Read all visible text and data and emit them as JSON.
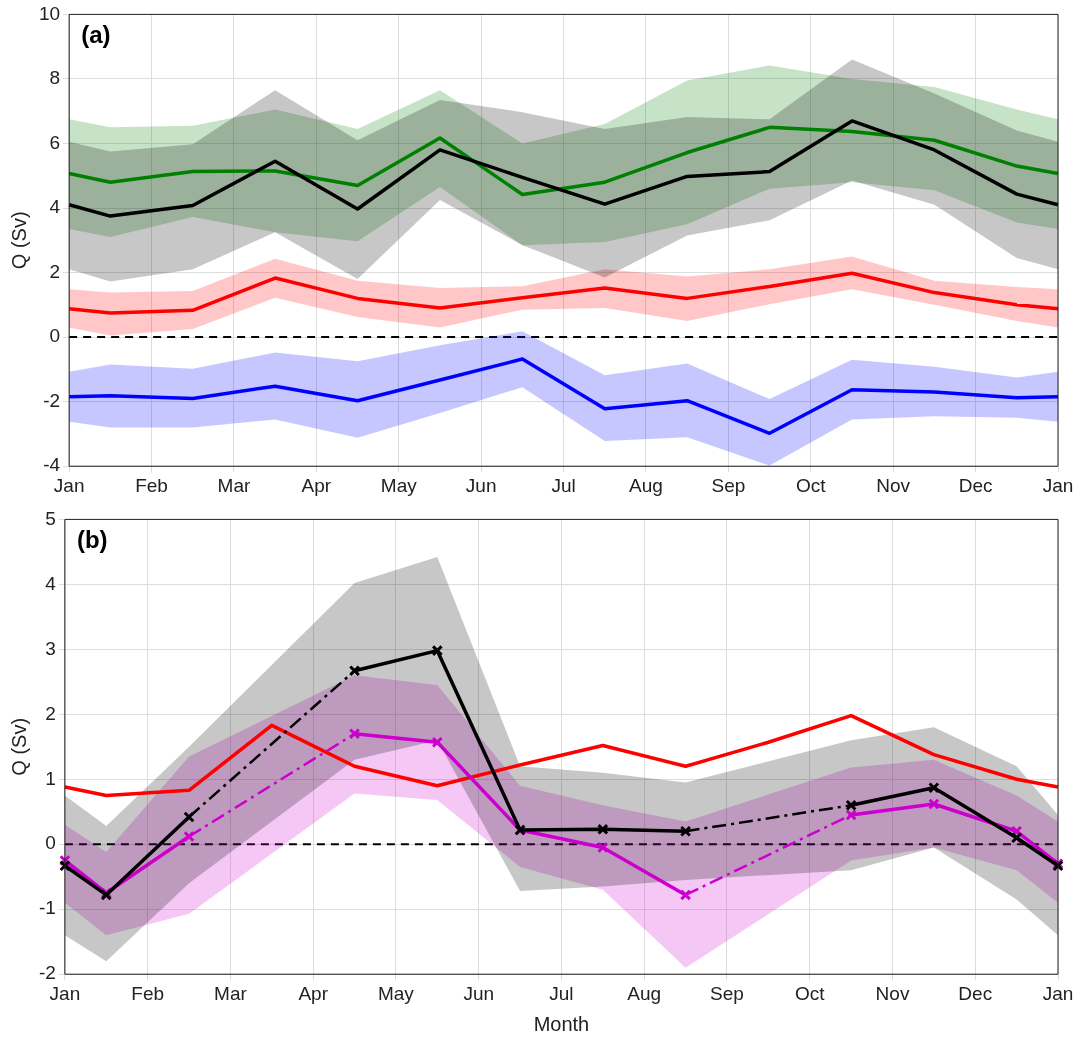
{
  "chart_data": [
    {
      "type": "line",
      "ylabel": "Q (Sv)",
      "annotations": [
        "(a)"
      ],
      "categories": [
        "Jan",
        null,
        "Feb",
        null,
        "Mar",
        null,
        "Apr",
        null,
        "May",
        null,
        "Jun",
        null,
        "Jul",
        null,
        "Aug",
        null,
        "Sep",
        null,
        "Oct",
        null,
        "Nov",
        null,
        "Dec",
        null,
        "Jan"
      ],
      "ylim": [
        -4,
        10
      ],
      "yticks": [
        -4,
        -2,
        0,
        2,
        4,
        6,
        8,
        10
      ],
      "grid": true,
      "legend": false,
      "line_style": "solid",
      "marker": "none",
      "ref_lines": [
        {
          "axis": "y",
          "value": 0,
          "color": "#000000",
          "line_style": "dashed"
        }
      ],
      "series": [
        {
          "color": "#000000",
          "values": [
            4.1,
            3.75,
            null,
            4.08,
            null,
            5.45,
            null,
            3.97,
            null,
            5.8,
            null,
            4.95,
            null,
            4.12,
            null,
            4.98,
            null,
            5.13,
            null,
            6.7,
            null,
            5.8,
            null,
            4.43,
            4.1
          ],
          "upper": [
            6.05,
            5.75,
            null,
            5.98,
            null,
            7.65,
            null,
            6.1,
            null,
            7.35,
            null,
            6.97,
            null,
            6.45,
            null,
            6.82,
            null,
            6.75,
            null,
            8.6,
            null,
            7.55,
            null,
            6.4,
            6.05
          ],
          "lower": [
            2.1,
            1.72,
            null,
            2.1,
            null,
            3.25,
            null,
            1.8,
            null,
            4.25,
            null,
            2.85,
            null,
            1.85,
            null,
            3.15,
            null,
            3.62,
            null,
            4.85,
            null,
            4.1,
            null,
            2.45,
            2.1
          ]
        },
        {
          "color": "#008000",
          "values": [
            5.07,
            4.8,
            null,
            5.13,
            null,
            5.15,
            null,
            4.7,
            null,
            6.17,
            null,
            4.42,
            null,
            4.8,
            null,
            5.72,
            null,
            6.5,
            null,
            6.37,
            null,
            6.1,
            null,
            5.3,
            5.07
          ],
          "upper": [
            6.75,
            6.5,
            null,
            6.55,
            null,
            7.05,
            null,
            6.45,
            null,
            7.65,
            null,
            6.0,
            null,
            6.6,
            null,
            7.95,
            null,
            8.42,
            null,
            8.0,
            null,
            7.75,
            null,
            7.05,
            6.75
          ],
          "lower": [
            3.35,
            3.1,
            null,
            3.72,
            null,
            3.25,
            null,
            2.97,
            null,
            4.65,
            null,
            2.85,
            null,
            2.95,
            null,
            3.5,
            null,
            4.6,
            null,
            4.8,
            null,
            4.55,
            null,
            3.55,
            3.35
          ]
        },
        {
          "color": "#ff0000",
          "values": [
            0.88,
            0.75,
            null,
            0.83,
            null,
            1.83,
            null,
            1.2,
            null,
            0.9,
            null,
            1.22,
            null,
            1.52,
            null,
            1.2,
            null,
            1.57,
            null,
            1.98,
            null,
            1.38,
            null,
            1.0,
            0.88
          ],
          "upper": [
            1.48,
            1.38,
            null,
            1.43,
            null,
            2.43,
            null,
            1.75,
            null,
            1.52,
            null,
            1.58,
            null,
            2.1,
            null,
            1.88,
            null,
            2.1,
            null,
            2.5,
            null,
            1.75,
            null,
            1.55,
            1.48
          ],
          "lower": [
            0.3,
            0.05,
            null,
            0.25,
            null,
            1.22,
            null,
            0.62,
            null,
            0.3,
            null,
            0.85,
            null,
            0.9,
            null,
            0.5,
            null,
            1.02,
            null,
            1.48,
            null,
            1.0,
            null,
            0.5,
            0.3
          ]
        },
        {
          "color": "#0000ff",
          "values": [
            -1.85,
            -1.82,
            null,
            -1.9,
            null,
            -1.52,
            null,
            -1.97,
            null,
            -1.33,
            null,
            -0.68,
            null,
            -2.22,
            null,
            -1.97,
            null,
            -2.98,
            null,
            -1.63,
            null,
            -1.7,
            null,
            -1.88,
            -1.85
          ],
          "upper": [
            -1.07,
            -0.85,
            null,
            -0.98,
            null,
            -0.48,
            null,
            -0.75,
            null,
            -0.25,
            null,
            0.18,
            null,
            -1.18,
            null,
            -0.82,
            null,
            -1.92,
            null,
            -0.7,
            null,
            -0.92,
            null,
            -1.25,
            -1.07
          ],
          "lower": [
            -2.62,
            -2.8,
            null,
            -2.8,
            null,
            -2.55,
            null,
            -3.12,
            null,
            -2.35,
            null,
            -1.55,
            null,
            -3.22,
            null,
            -3.1,
            null,
            -3.98,
            null,
            -2.55,
            null,
            -2.45,
            null,
            -2.5,
            -2.62
          ]
        }
      ]
    },
    {
      "type": "line",
      "xlabel": "Month",
      "ylabel": "Q (Sv)",
      "annotations": [
        "(b)"
      ],
      "categories": [
        "Jan",
        null,
        "Feb",
        null,
        "Mar",
        null,
        "Apr",
        null,
        "May",
        null,
        "Jun",
        null,
        "Jul",
        null,
        "Aug",
        null,
        "Sep",
        null,
        "Oct",
        null,
        "Nov",
        null,
        "Dec",
        null,
        "Jan"
      ],
      "ylim": [
        -2,
        5
      ],
      "yticks": [
        -2,
        -1,
        0,
        1,
        2,
        3,
        4,
        5
      ],
      "grid": true,
      "legend": false,
      "line_style": "solid",
      "ref_lines": [
        {
          "axis": "y",
          "value": 0,
          "color": "#000000",
          "line_style": "dashed"
        }
      ],
      "series": [
        {
          "color": "#000000",
          "marker": "cross",
          "values": [
            -0.33,
            -0.78,
            null,
            0.42,
            null,
            null,
            null,
            2.67,
            null,
            2.98,
            null,
            0.22,
            null,
            0.23,
            null,
            0.2,
            null,
            null,
            null,
            0.6,
            null,
            0.87,
            null,
            0.1,
            -0.33
          ],
          "upper": [
            0.75,
            0.28,
            null,
            1.5,
            null,
            null,
            null,
            4.02,
            null,
            4.42,
            null,
            1.2,
            null,
            1.1,
            null,
            0.95,
            null,
            null,
            null,
            1.6,
            null,
            1.8,
            null,
            1.2,
            0.45
          ],
          "lower": [
            -1.4,
            -1.8,
            null,
            -0.6,
            null,
            null,
            null,
            1.3,
            null,
            1.6,
            null,
            -0.72,
            null,
            -0.65,
            null,
            -0.55,
            null,
            null,
            null,
            -0.4,
            null,
            -0.05,
            null,
            -0.85,
            -1.4
          ]
        },
        {
          "color": "#cc00cc",
          "marker": "cross",
          "values": [
            -0.25,
            -0.75,
            null,
            0.12,
            null,
            null,
            null,
            1.7,
            null,
            1.57,
            null,
            0.22,
            null,
            -0.05,
            null,
            -0.78,
            null,
            null,
            null,
            0.45,
            null,
            0.62,
            null,
            0.2,
            -0.3
          ],
          "upper": [
            0.3,
            -0.12,
            null,
            1.35,
            null,
            null,
            null,
            2.6,
            null,
            2.45,
            null,
            0.9,
            null,
            0.6,
            null,
            0.35,
            null,
            null,
            null,
            1.18,
            null,
            1.3,
            null,
            0.75,
            0.35
          ],
          "lower": [
            -0.9,
            -1.4,
            null,
            -1.07,
            null,
            null,
            null,
            0.78,
            null,
            0.68,
            null,
            -0.35,
            null,
            -0.7,
            null,
            -1.9,
            null,
            null,
            null,
            -0.25,
            null,
            -0.05,
            null,
            -0.4,
            -0.9
          ]
        },
        {
          "color": "#ff0000",
          "marker": "none",
          "values": [
            0.88,
            0.75,
            null,
            0.83,
            null,
            1.83,
            null,
            1.2,
            null,
            0.9,
            null,
            1.22,
            null,
            1.52,
            null,
            1.2,
            null,
            1.57,
            null,
            1.98,
            null,
            1.38,
            null,
            1.0,
            0.88
          ]
        }
      ]
    }
  ]
}
